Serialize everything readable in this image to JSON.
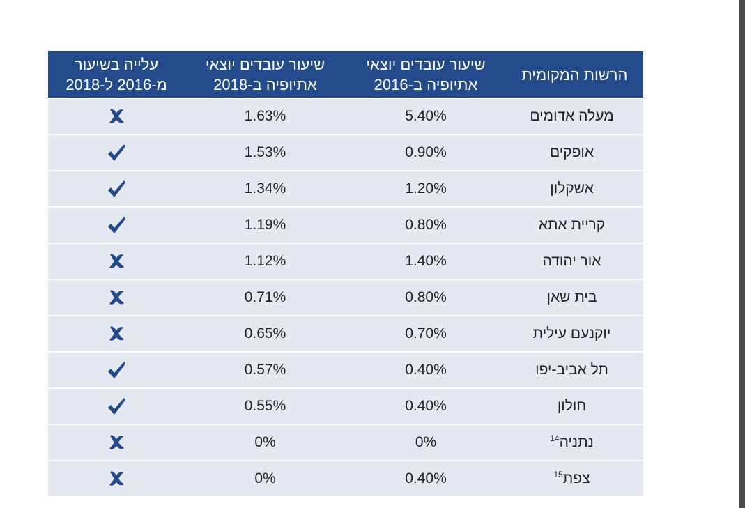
{
  "table": {
    "headers": {
      "authority": "הרשות המקומית",
      "rate_2016": "שיעור עובדים יוצאי אתיופיה ב-2016",
      "rate_2018": "שיעור עובדים יוצאי אתיופיה ב-2018",
      "rise": "עלייה בשיעור מ-2016 ל-2018"
    },
    "rows": [
      {
        "authority": "מעלה אדומים",
        "footnote": "",
        "rate_2016": "5.40%",
        "rate_2018": "1.63%",
        "rise": "x-icon"
      },
      {
        "authority": "אופקים",
        "footnote": "",
        "rate_2016": "0.90%",
        "rate_2018": "1.53%",
        "rise": "check-icon"
      },
      {
        "authority": "אשקלון",
        "footnote": "",
        "rate_2016": "1.20%",
        "rate_2018": "1.34%",
        "rise": "check-icon"
      },
      {
        "authority": "קריית אתא",
        "footnote": "",
        "rate_2016": "0.80%",
        "rate_2018": "1.19%",
        "rise": "check-icon"
      },
      {
        "authority": "אור יהודה",
        "footnote": "",
        "rate_2016": "1.40%",
        "rate_2018": "1.12%",
        "rise": "x-icon"
      },
      {
        "authority": "בית שאן",
        "footnote": "",
        "rate_2016": "0.80%",
        "rate_2018": "0.71%",
        "rise": "x-icon"
      },
      {
        "authority": "יוקנעם עילית",
        "footnote": "",
        "rate_2016": "0.70%",
        "rate_2018": "0.65%",
        "rise": "x-icon"
      },
      {
        "authority": "תל אביב-יפו",
        "footnote": "",
        "rate_2016": "0.40%",
        "rate_2018": "0.57%",
        "rise": "check-icon"
      },
      {
        "authority": "חולון",
        "footnote": "",
        "rate_2016": "0.40%",
        "rate_2018": "0.55%",
        "rise": "check-icon"
      },
      {
        "authority": "נתניה",
        "footnote": "14",
        "rate_2016": "0%",
        "rate_2018": "0%",
        "rise": "x-icon"
      },
      {
        "authority": "צפת",
        "footnote": "15",
        "rate_2016": "0.40%",
        "rate_2018": "0%",
        "rise": "x-icon"
      }
    ]
  },
  "colors": {
    "header_bg": "#234a8a",
    "row_bg": "#e4e8f0",
    "mark": "#234a8a"
  }
}
